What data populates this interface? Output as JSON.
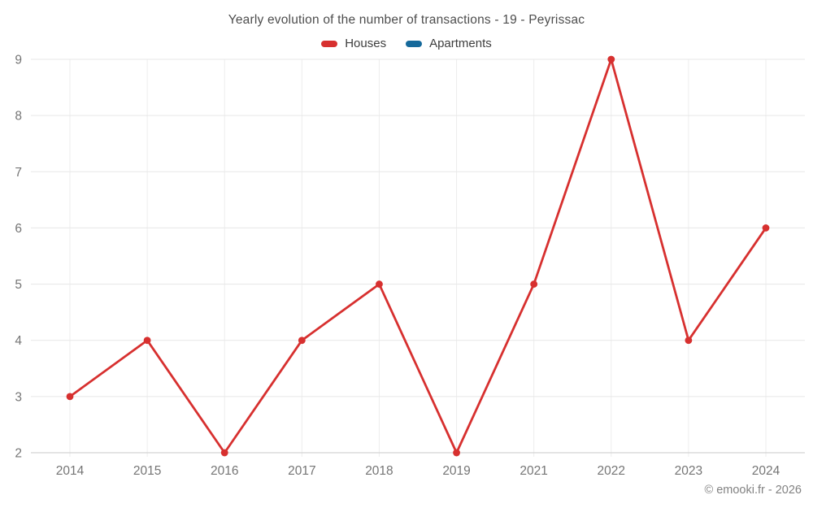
{
  "chart_data": {
    "type": "line",
    "title": "Yearly evolution of the number of transactions - 19 - Peyrissac",
    "categories": [
      "2014",
      "2015",
      "2016",
      "2017",
      "2018",
      "2019",
      "2021",
      "2022",
      "2023",
      "2024"
    ],
    "series": [
      {
        "name": "Houses",
        "color": "#d7302f",
        "values": [
          3,
          4,
          2,
          4,
          5,
          2,
          5,
          9,
          4,
          6
        ]
      },
      {
        "name": "Apartments",
        "color": "#15699b",
        "values": []
      }
    ],
    "xlabel": "",
    "ylabel": "",
    "ylim": [
      2,
      9
    ],
    "yticks": [
      2,
      3,
      4,
      5,
      6,
      7,
      8,
      9
    ],
    "grid": true,
    "legend_position": "top",
    "colors": {
      "grid_horizontal": "#e7e7e7",
      "grid_vertical": "#ededed",
      "axis_line": "#d4d4d4",
      "tick_label": "#757575"
    }
  },
  "footer": {
    "copyright": "© emooki.fr - 2026"
  }
}
